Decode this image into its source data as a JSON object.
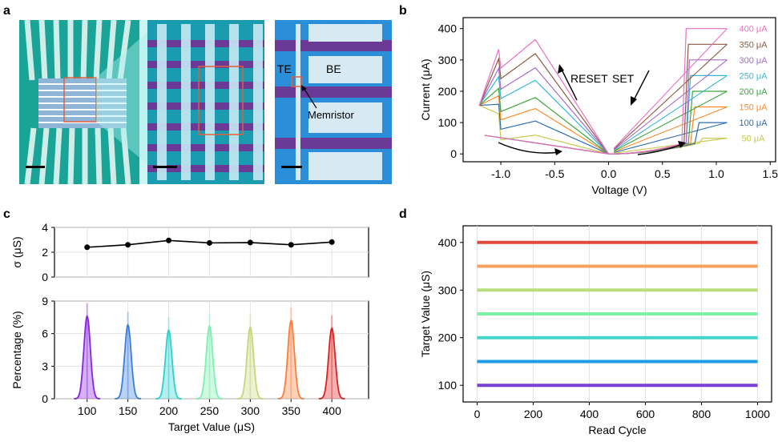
{
  "panels": {
    "a": {
      "letter": "a",
      "labels": {
        "te": "TE",
        "be": "BE",
        "memristor": "Memristor"
      }
    },
    "b": {
      "letter": "b"
    },
    "c": {
      "letter": "c"
    },
    "d": {
      "letter": "d"
    }
  },
  "colors": {
    "curr_50": "#c8c84a",
    "curr_100": "#2a6db3",
    "curr_150": "#ff8a2a",
    "curr_200": "#3aa63a",
    "curr_250": "#35b7d6",
    "curr_300": "#a86bd1",
    "curr_350": "#8c5a3f",
    "curr_400": "#ea6fc3",
    "target_100": "#7b3fd6",
    "target_150": "#1e9be8",
    "target_200": "#44d4c8",
    "target_250": "#7df2a4",
    "target_300": "#b8de7d",
    "target_350": "#f5a15f",
    "target_400": "#e0493a",
    "hist_100": "#8a22e0",
    "hist_150": "#3a7fe0",
    "hist_200": "#2ad0d0",
    "hist_250": "#7af2b0",
    "hist_300": "#c8d67a",
    "hist_350": "#ff7d3a",
    "hist_400": "#e02020"
  },
  "chart_data": [
    {
      "id": "b",
      "type": "line",
      "xlabel": "Voltage (V)",
      "ylabel": "Current (μA)",
      "xlim": [
        -1.35,
        1.55
      ],
      "ylim": [
        -25,
        435
      ],
      "xticks": [
        "-1.0",
        "-0.5",
        "0.0",
        "0.5",
        "1.0",
        "1.5"
      ],
      "xtick_values": [
        -1.0,
        -0.5,
        0.0,
        0.5,
        1.0,
        1.5
      ],
      "yticks": [
        "0",
        "100",
        "200",
        "300",
        "400"
      ],
      "ytick_values": [
        0,
        100,
        200,
        300,
        400
      ],
      "annotations": [
        "RESET",
        "SET"
      ],
      "series": [
        {
          "name": "50 μA",
          "compliance": 50,
          "reset_peak": 60,
          "set_v": 0.85
        },
        {
          "name": "100 μA",
          "compliance": 100,
          "reset_peak": 105,
          "set_v": 0.82
        },
        {
          "name": "150 μA",
          "compliance": 150,
          "reset_peak": 145,
          "set_v": 0.78
        },
        {
          "name": "200 μA",
          "compliance": 200,
          "reset_peak": 180,
          "set_v": 0.76
        },
        {
          "name": "250 μA",
          "compliance": 250,
          "reset_peak": 235,
          "set_v": 0.74
        },
        {
          "name": "300 μA",
          "compliance": 300,
          "reset_peak": 275,
          "set_v": 0.73
        },
        {
          "name": "350 μA",
          "compliance": 350,
          "reset_peak": 320,
          "set_v": 0.72
        },
        {
          "name": "400 μA",
          "compliance": 400,
          "reset_peak": 365,
          "set_v": 0.7
        }
      ]
    },
    {
      "id": "c-top",
      "type": "line",
      "ylabel": "σ (μS)",
      "xlim": [
        60,
        445
      ],
      "ylim": [
        0,
        4
      ],
      "yticks": [
        "0",
        "2",
        "4"
      ],
      "ytick_values": [
        0,
        2,
        4
      ],
      "x": [
        100,
        150,
        200,
        250,
        300,
        350,
        400
      ],
      "series": [
        {
          "values": [
            2.4,
            2.6,
            2.95,
            2.75,
            2.78,
            2.6,
            2.82
          ]
        }
      ]
    },
    {
      "id": "c-bottom",
      "type": "area",
      "xlabel": "Target Value (μS)",
      "ylabel": "Percentage (%)",
      "xlim": [
        60,
        445
      ],
      "ylim": [
        0,
        9
      ],
      "xticks": [
        "100",
        "150",
        "200",
        "250",
        "300",
        "350",
        "400"
      ],
      "xtick_values": [
        100,
        150,
        200,
        250,
        300,
        350,
        400
      ],
      "yticks": [
        "0",
        "3",
        "6",
        "9"
      ],
      "ytick_values": [
        0,
        3,
        6,
        9
      ],
      "series": [
        {
          "center": 100,
          "peak": 7.6
        },
        {
          "center": 150,
          "peak": 6.8
        },
        {
          "center": 200,
          "peak": 6.3
        },
        {
          "center": 250,
          "peak": 6.7
        },
        {
          "center": 300,
          "peak": 6.6
        },
        {
          "center": 350,
          "peak": 7.2
        },
        {
          "center": 400,
          "peak": 6.5
        }
      ]
    },
    {
      "id": "d",
      "type": "line",
      "xlabel": "Read Cycle",
      "ylabel": "Target Value (μS)",
      "xlim": [
        -50,
        1050
      ],
      "ylim": [
        65,
        435
      ],
      "xticks": [
        "0",
        "200",
        "400",
        "600",
        "800",
        "1000"
      ],
      "xtick_values": [
        0,
        200,
        400,
        600,
        800,
        1000
      ],
      "yticks": [
        "100",
        "200",
        "300",
        "400"
      ],
      "ytick_values": [
        100,
        200,
        300,
        400
      ],
      "series": [
        {
          "values": [
            100,
            100
          ]
        },
        {
          "values": [
            150,
            150
          ]
        },
        {
          "values": [
            200,
            200
          ]
        },
        {
          "values": [
            250,
            250
          ]
        },
        {
          "values": [
            300,
            300
          ]
        },
        {
          "values": [
            350,
            350
          ]
        },
        {
          "values": [
            400,
            400
          ]
        }
      ],
      "x": [
        0,
        1000
      ]
    }
  ]
}
